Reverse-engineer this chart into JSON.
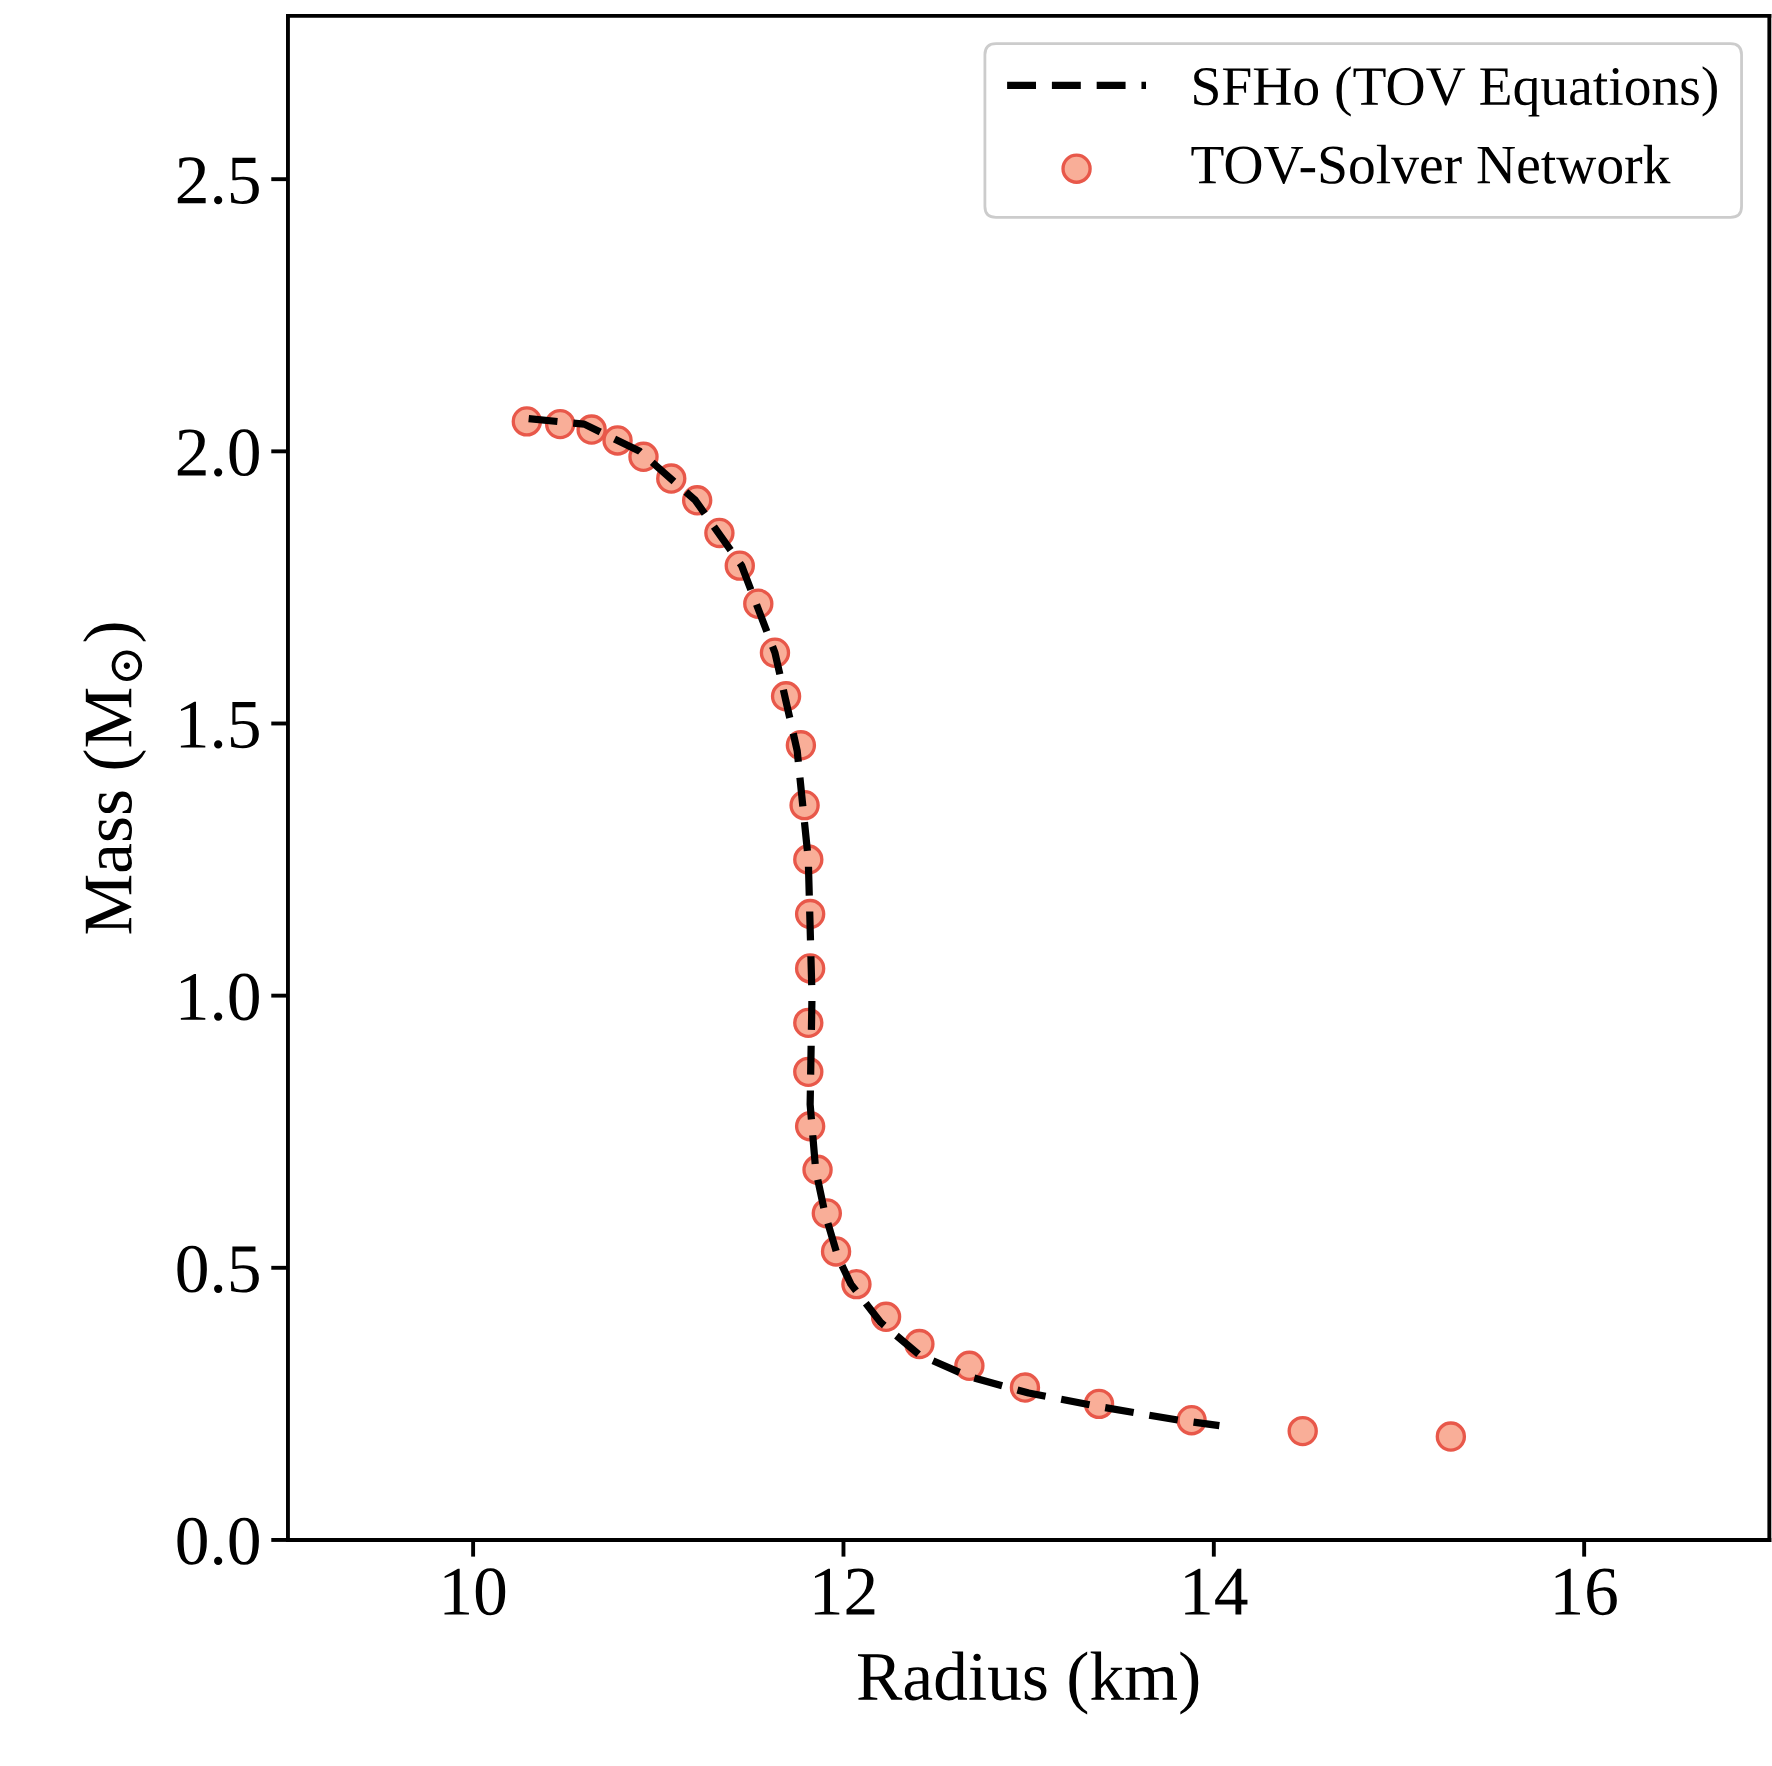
{
  "chart_data": {
    "type": "line",
    "xlabel": "Radius (km)",
    "ylabel": "Mass (M$_{⊙}$)",
    "xlim": [
      9,
      17
    ],
    "xticks": [
      10,
      12,
      14,
      16
    ],
    "ylim": [
      0,
      2.8
    ],
    "yticks": [
      {
        "value": 0,
        "label": "0.0"
      },
      0.5,
      {
        "value": 1,
        "label": "1.0"
      },
      1.5,
      {
        "value": 2,
        "label": "2.0"
      },
      2.5
    ],
    "grid": false,
    "legend": "top right",
    "series": [
      {
        "name": "SFHo (TOV Equations)",
        "color": "#000000",
        "line_style": "dashed",
        "marker": "none",
        "x": [
          10.3,
          10.6,
          10.9,
          11.2,
          11.45,
          11.63,
          11.75,
          11.81,
          11.83,
          11.82,
          11.85,
          11.9,
          11.97,
          12.04,
          12.2,
          12.41,
          12.68,
          13.0,
          13.38,
          13.81,
          14.03
        ],
        "values": [
          2.06,
          2.05,
          2.0,
          1.91,
          1.79,
          1.63,
          1.45,
          1.25,
          1.0,
          0.8,
          0.68,
          0.6,
          0.52,
          0.47,
          0.4,
          0.34,
          0.3,
          0.27,
          0.245,
          0.22,
          0.21
        ]
      },
      {
        "name": "TOV-Solver Network",
        "type": "scatter",
        "color": "#f9ae98",
        "marker": "circle",
        "x": [
          10.29,
          10.47,
          10.64,
          10.78,
          10.92,
          11.07,
          11.21,
          11.33,
          11.44,
          11.54,
          11.63,
          11.69,
          11.77,
          11.79,
          11.81,
          11.82,
          11.82,
          11.81,
          11.81,
          11.82,
          11.86,
          11.91,
          11.96,
          12.07,
          12.23,
          12.41,
          12.68,
          12.98,
          13.38,
          13.88,
          14.48,
          15.28
        ],
        "values": [
          2.055,
          2.05,
          2.04,
          2.02,
          1.99,
          1.95,
          1.91,
          1.85,
          1.79,
          1.72,
          1.63,
          1.55,
          1.46,
          1.35,
          1.25,
          1.15,
          1.05,
          0.95,
          0.86,
          0.76,
          0.68,
          0.6,
          0.53,
          0.47,
          0.41,
          0.36,
          0.32,
          0.28,
          0.25,
          0.22,
          0.2,
          0.19
        ]
      }
    ]
  }
}
